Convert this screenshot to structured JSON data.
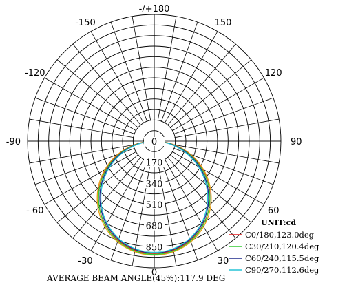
{
  "chart_data": {
    "type": "polar",
    "angle_labels": [
      {
        "deg": 0,
        "text": "0"
      },
      {
        "deg": 30,
        "text": "30"
      },
      {
        "deg": -30,
        "text": "-30"
      },
      {
        "deg": 60,
        "text": "60"
      },
      {
        "deg": -60,
        "text": "- 60"
      },
      {
        "deg": 90,
        "text": "90"
      },
      {
        "deg": -90,
        "text": "-90"
      },
      {
        "deg": 120,
        "text": "120"
      },
      {
        "deg": -120,
        "text": "-120"
      },
      {
        "deg": 150,
        "text": "150"
      },
      {
        "deg": -150,
        "text": "-150"
      },
      {
        "deg": 180,
        "text": "-/+180"
      }
    ],
    "radial_ticks": [
      0,
      170,
      340,
      510,
      680,
      850
    ],
    "radial_max": 1020,
    "unit_label": "UNIT:cd",
    "series": [
      {
        "name": "C0/180,123.0deg",
        "color": "#e31a1c",
        "half_beam": 61.5
      },
      {
        "name": "C30/210,120.4deg",
        "color": "#33cc33",
        "half_beam": 60.2
      },
      {
        "name": "C60/240,115.5deg",
        "color": "#1f2a8c",
        "half_beam": 57.75
      },
      {
        "name": "C90/270,112.6deg",
        "color": "#27c4d6",
        "half_beam": 56.3
      }
    ],
    "caption": "AVERAGE BEAM ANGLE(45%):117.9 DEG"
  },
  "colors": {
    "amber": "#e8a21a",
    "grid": "#000000"
  }
}
